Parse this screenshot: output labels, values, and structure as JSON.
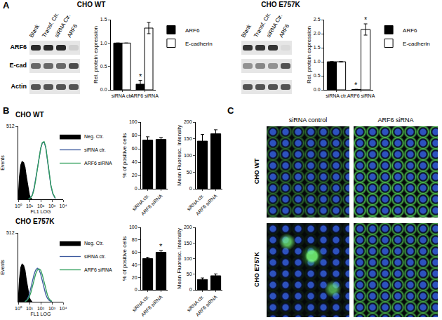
{
  "chart_data": [
    {
      "type": "bar",
      "categories": [
        "siRNA ctr.",
        "ARF6 siRNA"
      ],
      "series": [
        {
          "name": "ARF6",
          "color": "#000000",
          "values": [
            1.0,
            0.12
          ],
          "errors": [
            null,
            0.08
          ]
        },
        {
          "name": "E-cadherin",
          "color": "#ffffff",
          "values": [
            1.0,
            1.32
          ],
          "errors": [
            null,
            0.12
          ]
        }
      ],
      "y_label": "Rel. protein expression",
      "ylim": [
        0,
        1.5
      ],
      "yticks": [
        {
          "value": 0,
          "label": "0.0"
        },
        {
          "value": 0.5,
          "label": "0.5"
        },
        {
          "value": 1,
          "label": "1.0"
        },
        {
          "value": 1.5,
          "label": "1.5"
        }
      ],
      "legend": "right",
      "annotations": [
        {
          "text": "*",
          "category": "ARF6 siRNA",
          "series": "ARF6"
        }
      ]
    },
    {
      "type": "bar",
      "categories": [
        "siRNA ctr.",
        "ARF6 siRNA"
      ],
      "series": [
        {
          "name": "ARF6",
          "color": "#000000",
          "values": [
            1.0,
            0.01
          ],
          "errors": [
            null,
            0.01
          ]
        },
        {
          "name": "E-cadherin",
          "color": "#ffffff",
          "values": [
            1.0,
            2.15
          ],
          "errors": [
            null,
            0.2
          ]
        }
      ],
      "y_label": "Rel. protein expression",
      "ylim": [
        0,
        2.5
      ],
      "yticks": [
        {
          "value": 0,
          "label": "0.0"
        },
        {
          "value": 0.5,
          "label": "0.5"
        },
        {
          "value": 1,
          "label": "1.0"
        },
        {
          "value": 1.5,
          "label": "1.5"
        },
        {
          "value": 2,
          "label": "2.0"
        },
        {
          "value": 2.5,
          "label": "2.5"
        }
      ],
      "legend": "right",
      "annotations": [
        {
          "text": "*",
          "category": "ARF6 siRNA",
          "series": "ARF6"
        },
        {
          "text": "*",
          "category": "ARF6 siRNA",
          "series": "E-cadherin"
        }
      ]
    },
    {
      "type": "line",
      "log": "x",
      "x_label": "FL1 LOG",
      "y_label": "Events",
      "xlim": [
        1,
        10000
      ],
      "xticks": [
        {
          "value": 1,
          "label": "10⁰"
        },
        {
          "value": 10,
          "label": "10¹"
        },
        {
          "value": 100,
          "label": "10²"
        },
        {
          "value": 1000,
          "label": "10³"
        },
        {
          "value": 10000,
          "label": "10⁴"
        }
      ],
      "ylim": [
        0,
        512
      ],
      "yticks": [
        512
      ],
      "legend": "right",
      "series": [
        {
          "name": "Neg. Ctr.",
          "color": "#000000",
          "type": "area",
          "x": [
            1,
            1.3,
            1.7,
            2.2,
            3,
            4,
            5,
            6.5,
            8,
            10,
            13,
            17
          ],
          "values": [
            0,
            160,
            240,
            265,
            258,
            225,
            170,
            110,
            62,
            28,
            9,
            0
          ]
        },
        {
          "name": "siRNA ctr.",
          "color": "#3d5a9e",
          "type": "line",
          "x": [
            8,
            12,
            18,
            25,
            35,
            50,
            70,
            100,
            140,
            200,
            280,
            400,
            560,
            800,
            1200,
            2000
          ],
          "values": [
            0,
            11,
            32,
            75,
            140,
            215,
            290,
            355,
            395,
            400,
            365,
            280,
            185,
            97,
            38,
            5
          ]
        },
        {
          "name": "ARF6 siRNA",
          "color": "#2e9e5a",
          "type": "line",
          "x": [
            8,
            12,
            18,
            25,
            35,
            50,
            70,
            100,
            140,
            200,
            280,
            400,
            560,
            800,
            1200,
            2000
          ],
          "values": [
            0,
            9,
            27,
            65,
            130,
            210,
            290,
            360,
            398,
            405,
            370,
            290,
            195,
            102,
            43,
            9
          ]
        }
      ]
    },
    {
      "type": "bar",
      "categories": [
        "siRNA ctr.",
        "ARF6 siRNA"
      ],
      "color": "#000000",
      "values": [
        73,
        74
      ],
      "errors": [
        5,
        3
      ],
      "y_label": "% of positive cells",
      "ylim": [
        0,
        100
      ],
      "yticks": [
        0,
        20,
        40,
        60,
        80,
        100
      ]
    },
    {
      "type": "bar",
      "categories": [
        "siRNA ctr.",
        "ARF6 siRNA"
      ],
      "color": "#000000",
      "values": [
        143,
        165
      ],
      "errors": [
        20,
        12
      ],
      "y_label": "Mean Fluoresc. Intensity",
      "ylim": [
        0,
        200
      ],
      "yticks": [
        0,
        50,
        100,
        150,
        200
      ]
    },
    {
      "type": "line",
      "log": "x",
      "x_label": "FL1 LOG",
      "y_label": "Events",
      "xlim": [
        1,
        10000
      ],
      "xticks": [
        {
          "value": 1,
          "label": "10⁰"
        },
        {
          "value": 10,
          "label": "10¹"
        },
        {
          "value": 100,
          "label": "10²"
        },
        {
          "value": 1000,
          "label": "10³"
        },
        {
          "value": 10000,
          "label": "10⁴"
        }
      ],
      "ylim": [
        0,
        512
      ],
      "yticks": [
        512
      ],
      "legend": "right",
      "series": [
        {
          "name": "Neg. Ctr.",
          "color": "#000000",
          "type": "area",
          "x": [
            1,
            1.3,
            1.7,
            2.2,
            3,
            4,
            5,
            6.5,
            8,
            10,
            13,
            17
          ],
          "values": [
            0,
            170,
            255,
            280,
            270,
            235,
            175,
            112,
            64,
            28,
            9,
            0
          ]
        },
        {
          "name": "siRNA ctr.",
          "color": "#3d5a9e",
          "type": "line",
          "x": [
            4,
            6,
            9,
            13,
            18,
            25,
            35,
            50,
            70,
            100,
            140,
            200,
            280,
            400,
            600,
            1000
          ],
          "values": [
            0,
            15,
            45,
            95,
            150,
            200,
            235,
            250,
            240,
            205,
            155,
            100,
            55,
            25,
            8,
            0
          ]
        },
        {
          "name": "ARF6 siRNA",
          "color": "#2e9e5a",
          "type": "line",
          "x": [
            4,
            6,
            9,
            13,
            18,
            25,
            35,
            50,
            70,
            100,
            140,
            200,
            280,
            400,
            600,
            1000
          ],
          "values": [
            0,
            10,
            30,
            65,
            110,
            160,
            205,
            235,
            245,
            235,
            200,
            150,
            95,
            50,
            18,
            3
          ]
        }
      ]
    },
    {
      "type": "bar",
      "categories": [
        "siRNA ctr.",
        "ARF6 siRNA"
      ],
      "color": "#000000",
      "values": [
        50,
        60
      ],
      "errors": [
        2,
        3
      ],
      "y_label": "% of positive cells",
      "ylim": [
        0,
        100
      ],
      "yticks": [
        0,
        20,
        40,
        60,
        80,
        100
      ],
      "annotations": [
        {
          "text": "*",
          "category": "ARF6 siRNA"
        }
      ]
    },
    {
      "type": "bar",
      "categories": [
        "siRNA ctr.",
        "ARF6 siRNA"
      ],
      "color": "#000000",
      "values": [
        33,
        45
      ],
      "errors": [
        5,
        6
      ],
      "y_label": "Mean Fluoresc. Intensity",
      "ylim": [
        0,
        200
      ],
      "yticks": [
        0,
        50,
        100,
        150,
        200
      ]
    }
  ],
  "figure": {
    "panel_labels": [
      "A",
      "B",
      "C"
    ],
    "groups": [
      "CHO WT",
      "CHO E757K"
    ],
    "blot_rows": [
      "ARF6",
      "E-cad",
      "Actin"
    ],
    "blots": [
      {
        "lanes": [
          "Blank",
          "Transf. Ctr.",
          "siRNA Ctr.",
          "ARF6"
        ],
        "intensity": [
          [
            0.9,
            0.9,
            0.9,
            0.1
          ],
          [
            0.6,
            0.6,
            0.6,
            0.75
          ],
          [
            0.7,
            0.7,
            0.7,
            0.7
          ]
        ]
      },
      {
        "lanes": [
          "Blank",
          "Transf. Ctr.",
          "siRNA Ctr.",
          "ARF6"
        ],
        "intensity": [
          [
            0.85,
            0.85,
            0.85,
            0.05
          ],
          [
            0.4,
            0.45,
            0.4,
            0.7
          ],
          [
            0.7,
            0.7,
            0.7,
            0.7
          ]
        ]
      }
    ],
    "micrographs": {
      "columns": [
        "siRNA control",
        "ARF6 siRNA"
      ]
    }
  }
}
